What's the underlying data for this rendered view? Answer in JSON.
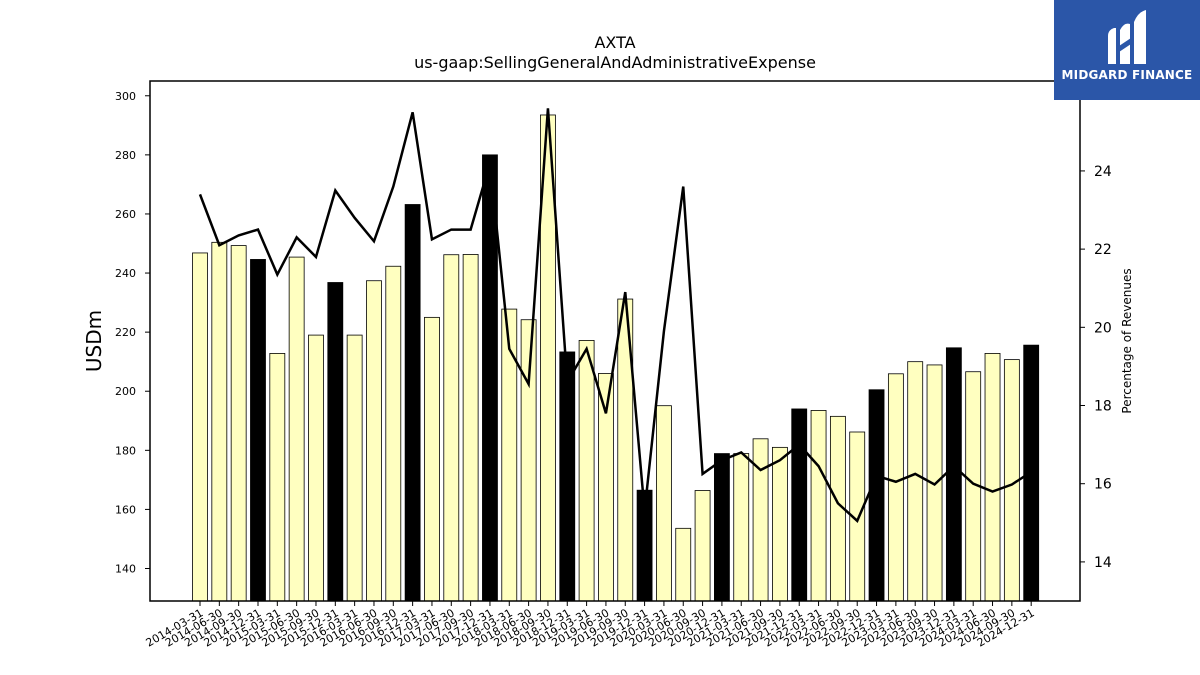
{
  "chart_data": {
    "type": "bar",
    "title": "AXTA",
    "subtitle": "us-gaap:SellingGeneralAndAdministrativeExpense",
    "ylabel": "USDm",
    "y2label": "Percentage of Revenues",
    "ylim": [
      129,
      305
    ],
    "y2lim": [
      13,
      26.3
    ],
    "yticks": [
      140,
      160,
      180,
      200,
      220,
      240,
      260,
      280,
      300
    ],
    "y2ticks": [
      14,
      16,
      18,
      20,
      22,
      24
    ],
    "categories": [
      "2014-03-31",
      "2014-06-30",
      "2014-09-30",
      "2014-12-31",
      "2015-03-31",
      "2015-06-30",
      "2015-09-30",
      "2015-12-31",
      "2016-03-31",
      "2016-06-30",
      "2016-09-30",
      "2016-12-31",
      "2017-03-31",
      "2017-06-30",
      "2017-09-30",
      "2017-12-31",
      "2018-03-31",
      "2018-06-30",
      "2018-09-30",
      "2018-12-31",
      "2019-03-31",
      "2019-06-30",
      "2019-09-30",
      "2019-12-31",
      "2020-03-31",
      "2020-06-30",
      "2020-09-30",
      "2020-12-31",
      "2021-03-31",
      "2021-06-30",
      "2021-09-30",
      "2021-12-31",
      "2022-03-31",
      "2022-06-30",
      "2022-09-30",
      "2022-12-31",
      "2023-03-31",
      "2023-06-30",
      "2023-09-30",
      "2023-12-31",
      "2024-03-31",
      "2024-06-30",
      "2024-09-30",
      "2024-12-31"
    ],
    "series": [
      {
        "type": "bar",
        "values": [
          246.8,
          250.4,
          249.3,
          244.6,
          212.8,
          245.4,
          219.0,
          236.8,
          219.0,
          237.4,
          242.3,
          263.2,
          225.0,
          246.2,
          246.3,
          280.0,
          227.8,
          224.2,
          293.5,
          213.3,
          217.2,
          206.0,
          231.2,
          166.5,
          195.1,
          153.6,
          166.4,
          178.9,
          178.9,
          183.9,
          181.0,
          194.0,
          193.5,
          191.5,
          186.2,
          200.5,
          205.9,
          210.0,
          208.9,
          214.7,
          206.6,
          212.8,
          210.7,
          215.6
        ],
        "colors": {
          "quarter": "#ffffc0",
          "year_end": "#000000",
          "edge": "#000000"
        }
      },
      {
        "type": "line",
        "axis": "right",
        "color": "#000000",
        "values": [
          23.4,
          22.1,
          22.35,
          22.5,
          21.35,
          22.3,
          21.8,
          23.5,
          22.8,
          22.2,
          23.6,
          25.5,
          22.25,
          22.5,
          22.5,
          24.2,
          19.45,
          18.55,
          25.6,
          18.6,
          19.45,
          17.8,
          20.9,
          15.3,
          19.9,
          23.6,
          16.25,
          16.6,
          16.8,
          16.35,
          16.6,
          17.0,
          16.45,
          15.5,
          15.05,
          16.2,
          16.05,
          16.25,
          15.98,
          16.45,
          16.0,
          15.8,
          15.98,
          16.3
        ]
      }
    ],
    "grid": false,
    "legend": "none"
  },
  "logo": {
    "text": "MIDGARD FINANCE",
    "bg_color": "#2b56a8"
  }
}
